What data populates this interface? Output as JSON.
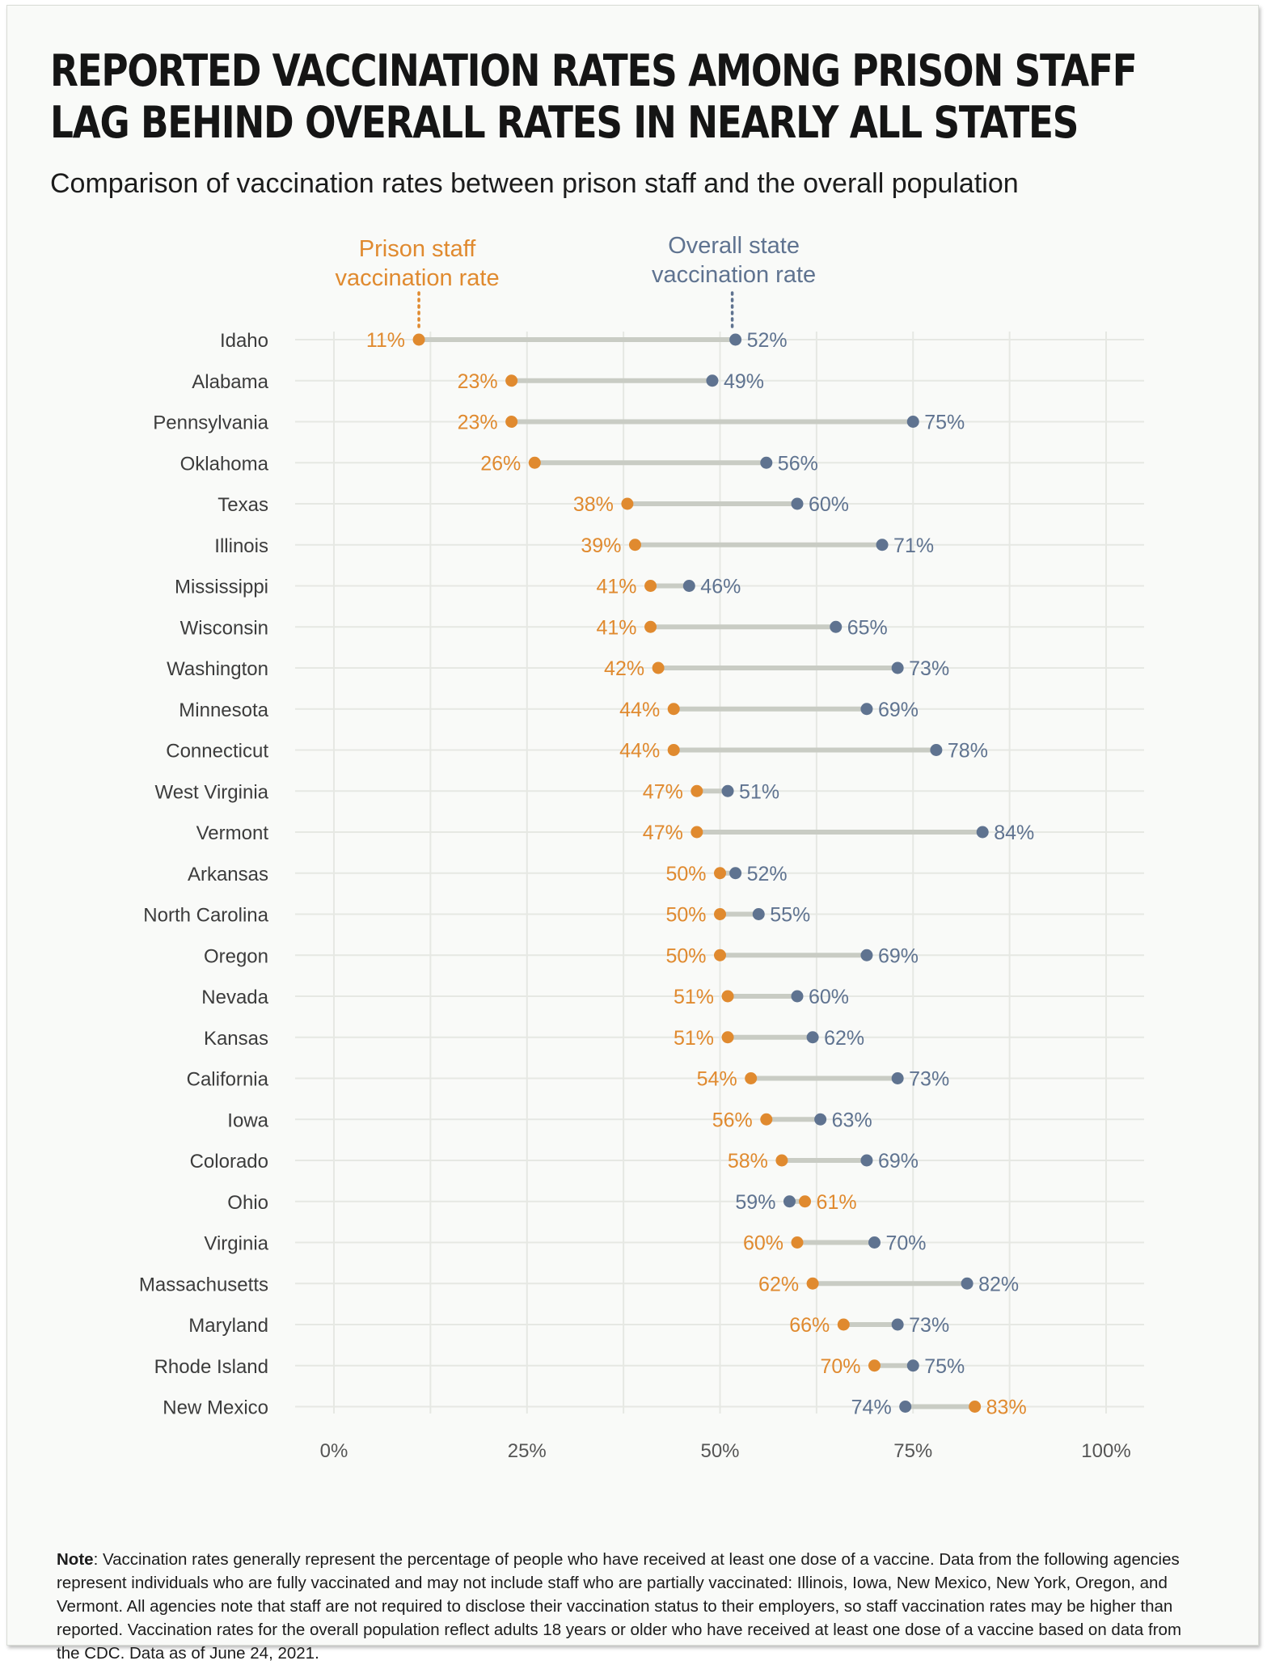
{
  "header": {
    "title_line1": "REPORTED VACCINATION RATES AMONG PRISON STAFF",
    "title_line2": "LAG BEHIND OVERALL RATES IN NEARLY ALL STATES",
    "subtitle": "Comparison of vaccination rates between prison staff and the overall population"
  },
  "colors": {
    "staff": "#e08a2f",
    "overall": "#5f7390",
    "connector": "#c9ccc4",
    "grid": "#e6e8e3"
  },
  "chart_data": {
    "type": "dot-range",
    "legend": {
      "staff_line1": "Prison staff",
      "staff_line2": "vaccination rate",
      "overall_line1": "Overall state",
      "overall_line2": "vaccination rate"
    },
    "xlim": [
      0,
      100
    ],
    "xticks": [
      0,
      25,
      50,
      75,
      100
    ],
    "xtick_labels": [
      "0%",
      "25%",
      "50%",
      "75%",
      "100%"
    ],
    "series": [
      {
        "name": "Prison staff vaccination rate",
        "key": "staff"
      },
      {
        "name": "Overall state vaccination rate",
        "key": "overall"
      }
    ],
    "rows": [
      {
        "state": "Idaho",
        "staff": 11,
        "overall": 52
      },
      {
        "state": "Alabama",
        "staff": 23,
        "overall": 49
      },
      {
        "state": "Pennsylvania",
        "staff": 23,
        "overall": 75
      },
      {
        "state": "Oklahoma",
        "staff": 26,
        "overall": 56
      },
      {
        "state": "Texas",
        "staff": 38,
        "overall": 60
      },
      {
        "state": "Illinois",
        "staff": 39,
        "overall": 71
      },
      {
        "state": "Mississippi",
        "staff": 41,
        "overall": 46
      },
      {
        "state": "Wisconsin",
        "staff": 41,
        "overall": 65
      },
      {
        "state": "Washington",
        "staff": 42,
        "overall": 73
      },
      {
        "state": "Minnesota",
        "staff": 44,
        "overall": 69
      },
      {
        "state": "Connecticut",
        "staff": 44,
        "overall": 78
      },
      {
        "state": "West Virginia",
        "staff": 47,
        "overall": 51
      },
      {
        "state": "Vermont",
        "staff": 47,
        "overall": 84
      },
      {
        "state": "Arkansas",
        "staff": 50,
        "overall": 52
      },
      {
        "state": "North Carolina",
        "staff": 50,
        "overall": 55
      },
      {
        "state": "Oregon",
        "staff": 50,
        "overall": 69
      },
      {
        "state": "Nevada",
        "staff": 51,
        "overall": 60
      },
      {
        "state": "Kansas",
        "staff": 51,
        "overall": 62
      },
      {
        "state": "California",
        "staff": 54,
        "overall": 73
      },
      {
        "state": "Iowa",
        "staff": 56,
        "overall": 63
      },
      {
        "state": "Colorado",
        "staff": 58,
        "overall": 69
      },
      {
        "state": "Ohio",
        "staff": 61,
        "overall": 59
      },
      {
        "state": "Virginia",
        "staff": 60,
        "overall": 70
      },
      {
        "state": "Massachusetts",
        "staff": 62,
        "overall": 82
      },
      {
        "state": "Maryland",
        "staff": 66,
        "overall": 73
      },
      {
        "state": "Rhode Island",
        "staff": 70,
        "overall": 75
      },
      {
        "state": "New Mexico",
        "staff": 83,
        "overall": 74
      }
    ]
  },
  "note": {
    "label": "Note",
    "text": ": Vaccination rates generally represent the percentage of people who have received at least one dose of a vaccine. Data from the following agencies represent individuals who are fully vaccinated and may not include staff who are partially vaccinated: Illinois, Iowa, New Mexico, New York, Oregon, and Vermont. All agencies note that staff are not required to disclose their vaccination status to their employers, so staff vaccination rates may be higher than reported. Vaccination rates for the overall population reflect adults 18 years or older who have received at least one dose of a vaccine based on data from the CDC. Data as of June 24, 2021."
  }
}
